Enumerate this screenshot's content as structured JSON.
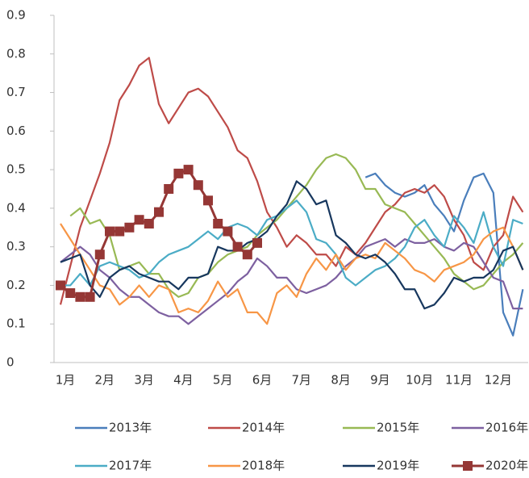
{
  "chart_data": {
    "type": "line",
    "categories": [
      "1月",
      null,
      null,
      null,
      "2月",
      null,
      null,
      null,
      "3月",
      null,
      null,
      null,
      "4月",
      null,
      null,
      null,
      "5月",
      null,
      null,
      null,
      "6月",
      null,
      null,
      null,
      "7月",
      null,
      null,
      null,
      "8月",
      null,
      null,
      null,
      "9月",
      null,
      null,
      null,
      "10月",
      null,
      null,
      null,
      "11月",
      null,
      null,
      null,
      "12月",
      null,
      null,
      null
    ],
    "ylim": [
      0,
      0.9
    ],
    "yticks": [
      0,
      0.1,
      0.2,
      0.3,
      0.4,
      0.5,
      0.6,
      0.7,
      0.8,
      0.9
    ],
    "grid": false,
    "legend": "bottom",
    "series": [
      {
        "name": "2013年",
        "color": "#4a7ebb",
        "values": [
          null,
          null,
          null,
          null,
          null,
          null,
          null,
          null,
          null,
          null,
          null,
          null,
          null,
          null,
          null,
          null,
          null,
          null,
          null,
          null,
          null,
          null,
          null,
          null,
          null,
          null,
          null,
          null,
          null,
          null,
          null,
          0.48,
          0.49,
          0.46,
          0.44,
          0.43,
          0.44,
          0.46,
          0.41,
          0.38,
          0.34,
          0.42,
          0.48,
          0.49,
          0.44,
          0.13,
          0.07,
          0.19
        ]
      },
      {
        "name": "2014年",
        "color": "#be4b48",
        "values": [
          0.15,
          0.25,
          0.35,
          0.42,
          0.49,
          0.57,
          0.68,
          0.72,
          0.77,
          0.79,
          0.67,
          0.62,
          0.66,
          0.7,
          0.71,
          0.69,
          0.65,
          0.61,
          0.55,
          0.53,
          0.47,
          0.39,
          0.35,
          0.3,
          0.33,
          0.31,
          0.28,
          0.28,
          0.25,
          0.3,
          0.28,
          0.31,
          0.35,
          0.39,
          0.41,
          0.44,
          0.45,
          0.44,
          0.46,
          0.43,
          0.37,
          0.33,
          0.26,
          0.24,
          0.3,
          0.33,
          0.43,
          0.39
        ]
      },
      {
        "name": "2015年",
        "color": "#98b954",
        "values": [
          null,
          0.38,
          0.4,
          0.36,
          0.37,
          0.33,
          0.24,
          0.25,
          0.26,
          0.23,
          0.23,
          0.19,
          0.17,
          0.18,
          0.22,
          0.23,
          0.26,
          0.28,
          0.29,
          0.3,
          0.33,
          0.35,
          0.37,
          0.4,
          0.43,
          0.46,
          0.5,
          0.53,
          0.54,
          0.53,
          0.5,
          0.45,
          0.45,
          0.41,
          0.4,
          0.39,
          0.36,
          0.33,
          0.3,
          0.27,
          0.23,
          0.21,
          0.19,
          0.2,
          0.23,
          0.26,
          0.28,
          0.31
        ]
      },
      {
        "name": "2016年",
        "color": "#7d60a0",
        "values": [
          0.26,
          0.28,
          0.3,
          0.28,
          0.24,
          0.22,
          0.19,
          0.17,
          0.17,
          0.15,
          0.13,
          0.12,
          0.12,
          0.1,
          0.12,
          0.14,
          0.16,
          0.18,
          0.21,
          0.23,
          0.27,
          0.25,
          0.22,
          0.22,
          0.19,
          0.18,
          0.19,
          0.2,
          0.22,
          0.25,
          0.27,
          0.3,
          0.31,
          0.32,
          0.3,
          0.32,
          0.31,
          0.31,
          0.32,
          0.3,
          0.29,
          0.31,
          0.3,
          0.26,
          0.22,
          0.21,
          0.14,
          0.14
        ]
      },
      {
        "name": "2017年",
        "color": "#4bacc6",
        "values": [
          0.2,
          0.2,
          0.23,
          0.2,
          0.25,
          0.26,
          0.25,
          0.24,
          0.22,
          0.23,
          0.26,
          0.28,
          0.29,
          0.3,
          0.32,
          0.34,
          0.32,
          0.35,
          0.36,
          0.35,
          0.33,
          0.37,
          0.38,
          0.4,
          0.42,
          0.39,
          0.32,
          0.31,
          0.28,
          0.22,
          0.2,
          0.22,
          0.24,
          0.25,
          0.27,
          0.3,
          0.35,
          0.37,
          0.33,
          0.3,
          0.38,
          0.35,
          0.31,
          0.39,
          0.3,
          0.25,
          0.37,
          0.36
        ]
      },
      {
        "name": "2018年",
        "color": "#f79646",
        "values": [
          0.36,
          0.32,
          0.28,
          0.24,
          0.2,
          0.19,
          0.15,
          0.17,
          0.2,
          0.17,
          0.2,
          0.19,
          0.13,
          0.14,
          0.13,
          0.16,
          0.21,
          0.17,
          0.19,
          0.13,
          0.13,
          0.1,
          0.18,
          0.2,
          0.17,
          0.23,
          0.27,
          0.24,
          0.28,
          0.24,
          0.27,
          0.28,
          0.27,
          0.31,
          0.29,
          0.27,
          0.24,
          0.23,
          0.21,
          0.24,
          0.25,
          0.26,
          0.28,
          0.32,
          0.34,
          0.35,
          0.3,
          0.24
        ]
      },
      {
        "name": "2019年",
        "color": "#17375e",
        "values": [
          0.26,
          0.27,
          0.28,
          0.2,
          0.17,
          0.22,
          0.24,
          0.25,
          0.23,
          0.22,
          0.21,
          0.21,
          0.19,
          0.22,
          0.22,
          0.23,
          0.3,
          0.29,
          0.29,
          0.31,
          0.32,
          0.34,
          0.38,
          0.41,
          0.47,
          0.45,
          0.41,
          0.42,
          0.33,
          0.31,
          0.28,
          0.27,
          0.28,
          0.26,
          0.23,
          0.19,
          0.19,
          0.14,
          0.15,
          0.18,
          0.22,
          0.21,
          0.22,
          0.22,
          0.24,
          0.29,
          0.3,
          0.24
        ]
      },
      {
        "name": "2020年",
        "color": "#953735",
        "marker": "square",
        "values": [
          0.2,
          0.18,
          0.17,
          0.17,
          0.28,
          0.34,
          0.34,
          0.35,
          0.37,
          0.36,
          0.39,
          0.45,
          0.49,
          0.5,
          0.46,
          0.42,
          0.36,
          0.34,
          0.3,
          0.28,
          0.31,
          null,
          null,
          null,
          null,
          null,
          null,
          null,
          null,
          null,
          null,
          null,
          null,
          null,
          null,
          null,
          null,
          null,
          null,
          null,
          null,
          null,
          null,
          null,
          null,
          null,
          null,
          null
        ]
      }
    ]
  }
}
